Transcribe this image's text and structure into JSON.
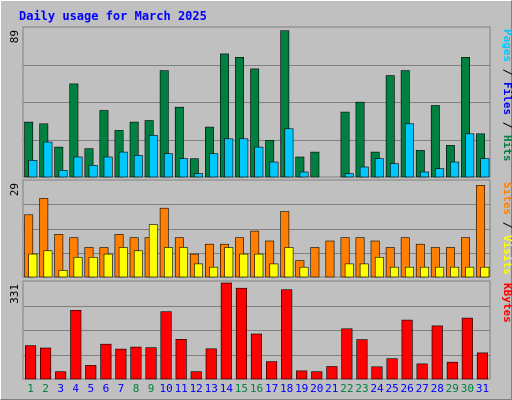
{
  "chart_data": {
    "type": "bar",
    "title": "Daily usage for March 2025",
    "categories": [
      "1",
      "2",
      "3",
      "4",
      "5",
      "6",
      "7",
      "8",
      "9",
      "10",
      "11",
      "12",
      "13",
      "14",
      "15",
      "16",
      "17",
      "18",
      "19",
      "20",
      "21",
      "22",
      "23",
      "24",
      "25",
      "26",
      "27",
      "28",
      "29",
      "30",
      "31"
    ],
    "weekend_days": [
      "1",
      "2",
      "8",
      "9",
      "15",
      "16",
      "22",
      "23",
      "29",
      "30"
    ],
    "panels": [
      {
        "id": "hits",
        "ymax_label": "89",
        "ymax": 89,
        "legend": [
          {
            "label": "Pages",
            "color": "#00c8ff"
          },
          {
            "label": "Files",
            "color": "#0000ff"
          },
          {
            "label": "Hits",
            "color": "#008040"
          }
        ],
        "series": [
          {
            "name": "Hits",
            "color": "#008040",
            "values": [
              33,
              32,
              18,
              56,
              17,
              40,
              28,
              33,
              34,
              64,
              42,
              11,
              30,
              74,
              72,
              65,
              22,
              88,
              12,
              15,
              0,
              39,
              45,
              15,
              61,
              64,
              16,
              43,
              19,
              72,
              26
            ]
          },
          {
            "name": "Pages",
            "color": "#00c8ff",
            "values": [
              10,
              21,
              4,
              12,
              7,
              12,
              15,
              13,
              25,
              14,
              11,
              2,
              14,
              23,
              23,
              18,
              9,
              29,
              3,
              0,
              0,
              2,
              6,
              11,
              8,
              32,
              3,
              5,
              9,
              26,
              11
            ]
          }
        ]
      },
      {
        "id": "visits",
        "ymax_label": "29",
        "ymax": 29,
        "legend": [
          {
            "label": "Sites",
            "color": "#ff8000"
          },
          {
            "label": "Visits",
            "color": "#ffff00"
          }
        ],
        "series": [
          {
            "name": "Visits",
            "color": "#ff8000",
            "values": [
              19,
              24,
              13,
              12,
              9,
              9,
              13,
              12,
              12,
              21,
              12,
              7,
              10,
              10,
              12,
              14,
              11,
              20,
              5,
              9,
              11,
              12,
              12,
              11,
              9,
              12,
              10,
              9,
              9,
              12,
              28
            ]
          },
          {
            "name": "Sites",
            "color": "#ffff00",
            "values": [
              7,
              8,
              2,
              6,
              6,
              7,
              9,
              8,
              16,
              9,
              9,
              4,
              3,
              9,
              7,
              7,
              4,
              9,
              3,
              0,
              0,
              4,
              4,
              6,
              3,
              3,
              3,
              3,
              3,
              3,
              3
            ]
          }
        ]
      },
      {
        "id": "kbytes",
        "ymax_label": "331",
        "ymax": 331,
        "legend": [
          {
            "label": "KBytes",
            "color": "#ff0000"
          }
        ],
        "series": [
          {
            "name": "KBytes",
            "color": "#ff0000",
            "values": [
              115,
              107,
              25,
              237,
              47,
              120,
              103,
              110,
              108,
              232,
              137,
              25,
              104,
              331,
              313,
              155,
              60,
              308,
              28,
              25,
              43,
              173,
              136,
              42,
              70,
              203,
              52,
              183,
              58,
              210,
              90
            ]
          }
        ]
      }
    ],
    "colors": {
      "background": "#c0c0c0",
      "title": "#0000ff",
      "weekday_label": "#0000ff",
      "weekend_label": "#008040",
      "gridline": "#808080"
    }
  }
}
